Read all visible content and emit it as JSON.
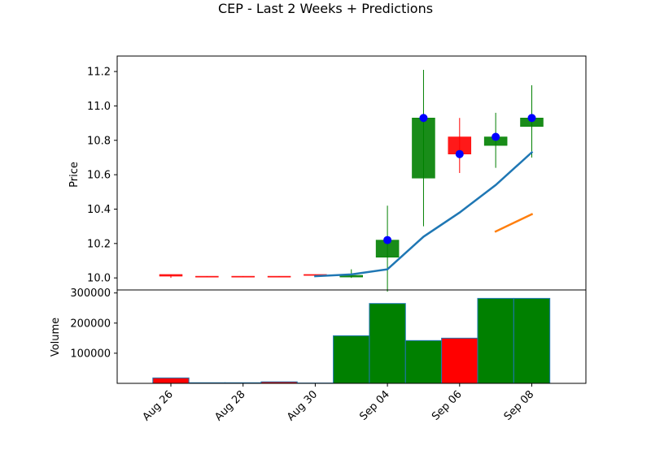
{
  "chart_data": {
    "type": "candlestick",
    "title": "CEP - Last 2 Weeks + Predictions",
    "colors": {
      "up": "#008000",
      "down": "#ff0000",
      "close_marker": "#0000ff",
      "line_a": "#1f77b4",
      "line_b": "#ff7f0e",
      "volume_edge": "#1f77b4"
    },
    "price_panel": {
      "ylabel": "Price",
      "ylim": [
        9.93,
        11.29
      ],
      "yticks": [
        "10.0",
        "10.2",
        "10.4",
        "10.6",
        "10.8",
        "11.0",
        "11.2"
      ],
      "candles": [
        {
          "date": "Aug 26",
          "open": 10.02,
          "high": 10.02,
          "low": 10.0,
          "close": 10.01,
          "dir": "down"
        },
        {
          "date": "Aug 27",
          "open": 10.01,
          "high": 10.01,
          "low": 10.005,
          "close": 10.005,
          "dir": "down"
        },
        {
          "date": "Aug 28",
          "open": 10.01,
          "high": 10.01,
          "low": 10.005,
          "close": 10.005,
          "dir": "down"
        },
        {
          "date": "Aug 29",
          "open": 10.01,
          "high": 10.01,
          "low": 10.005,
          "close": 10.005,
          "dir": "down"
        },
        {
          "date": "Aug 30",
          "open": 10.02,
          "high": 10.02,
          "low": 10.015,
          "close": 10.015,
          "dir": "down"
        },
        {
          "date": "Sep 03",
          "open": 10.005,
          "high": 10.05,
          "low": 10.0,
          "close": 10.015,
          "dir": "up"
        },
        {
          "date": "Sep 04",
          "open": 10.12,
          "high": 10.42,
          "low": 9.92,
          "close": 10.22,
          "dir": "up",
          "marker": 10.22
        },
        {
          "date": "Sep 05",
          "open": 10.58,
          "high": 11.21,
          "low": 10.3,
          "close": 10.93,
          "dir": "up",
          "marker": 10.93
        },
        {
          "date": "Sep 06",
          "open": 10.82,
          "high": 10.93,
          "low": 10.61,
          "close": 10.72,
          "dir": "down",
          "marker": 10.72
        },
        {
          "date": "Sep 07",
          "open": 10.77,
          "high": 10.96,
          "low": 10.64,
          "close": 10.82,
          "dir": "up",
          "marker": 10.82
        },
        {
          "date": "Sep 08",
          "open": 10.88,
          "high": 11.12,
          "low": 10.7,
          "close": 10.93,
          "dir": "up",
          "marker": 10.93
        }
      ],
      "line_a": [
        {
          "date": "Aug 30",
          "value": 10.01
        },
        {
          "date": "Sep 03",
          "value": 10.02
        },
        {
          "date": "Sep 04",
          "value": 10.05
        },
        {
          "date": "Sep 05",
          "value": 10.24
        },
        {
          "date": "Sep 06",
          "value": 10.38
        },
        {
          "date": "Sep 07",
          "value": 10.54
        },
        {
          "date": "Sep 08",
          "value": 10.73
        }
      ],
      "line_b": [
        {
          "date": "Sep 07",
          "value": 10.27
        },
        {
          "date": "Sep 08",
          "value": 10.37
        }
      ]
    },
    "volume_panel": {
      "ylabel": "Volume",
      "ylim": [
        0,
        310000
      ],
      "yticks": [
        "100000",
        "200000",
        "300000"
      ],
      "bars": [
        {
          "date": "Aug 26",
          "volume": 18000,
          "dir": "down"
        },
        {
          "date": "Aug 27",
          "volume": 2000,
          "dir": "down"
        },
        {
          "date": "Aug 28",
          "volume": 2000,
          "dir": "down"
        },
        {
          "date": "Aug 29",
          "volume": 5000,
          "dir": "down"
        },
        {
          "date": "Aug 30",
          "volume": 1000,
          "dir": "down"
        },
        {
          "date": "Sep 03",
          "volume": 158000,
          "dir": "up"
        },
        {
          "date": "Sep 04",
          "volume": 265000,
          "dir": "up"
        },
        {
          "date": "Sep 05",
          "volume": 142000,
          "dir": "up"
        },
        {
          "date": "Sep 06",
          "volume": 150000,
          "dir": "down"
        },
        {
          "date": "Sep 07",
          "volume": 282000,
          "dir": "up"
        },
        {
          "date": "Sep 08",
          "volume": 282000,
          "dir": "up"
        }
      ]
    },
    "xticks": [
      "Aug 26",
      "Aug 28",
      "Aug 30",
      "Sep 04",
      "Sep 06",
      "Sep 08"
    ]
  }
}
